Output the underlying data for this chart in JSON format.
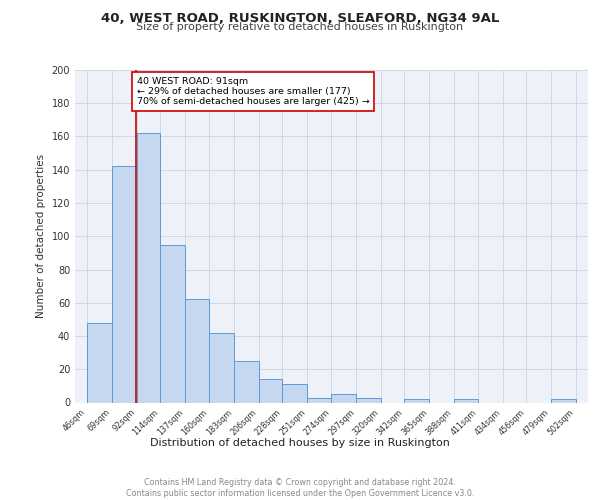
{
  "title1": "40, WEST ROAD, RUSKINGTON, SLEAFORD, NG34 9AL",
  "title2": "Size of property relative to detached houses in Ruskington",
  "xlabel": "Distribution of detached houses by size in Ruskington",
  "ylabel": "Number of detached properties",
  "bar_edges": [
    46,
    69,
    92,
    114,
    137,
    160,
    183,
    206,
    228,
    251,
    274,
    297,
    320,
    342,
    365,
    388,
    411,
    434,
    456,
    479,
    502
  ],
  "bar_heights": [
    48,
    142,
    162,
    95,
    62,
    42,
    25,
    14,
    11,
    3,
    5,
    3,
    0,
    2,
    0,
    2,
    0,
    0,
    0,
    2
  ],
  "bar_color": "#c5d8f0",
  "bar_edge_color": "#5b9bd5",
  "property_line_x": 91,
  "property_line_color": "#cc0000",
  "annotation_text": "40 WEST ROAD: 91sqm\n← 29% of detached houses are smaller (177)\n70% of semi-detached houses are larger (425) →",
  "annotation_box_color": "#ffffff",
  "annotation_box_edge_color": "#cc0000",
  "grid_color": "#d0d8e8",
  "background_color": "#eef2f8",
  "footer_text": "Contains HM Land Registry data © Crown copyright and database right 2024.\nContains public sector information licensed under the Open Government Licence v3.0.",
  "ylim": [
    0,
    200
  ],
  "yticks": [
    0,
    20,
    40,
    60,
    80,
    100,
    120,
    140,
    160,
    180,
    200
  ],
  "tick_labels": [
    "46sqm",
    "69sqm",
    "92sqm",
    "114sqm",
    "137sqm",
    "160sqm",
    "183sqm",
    "206sqm",
    "228sqm",
    "251sqm",
    "274sqm",
    "297sqm",
    "320sqm",
    "342sqm",
    "365sqm",
    "388sqm",
    "411sqm",
    "434sqm",
    "456sqm",
    "479sqm",
    "502sqm"
  ]
}
